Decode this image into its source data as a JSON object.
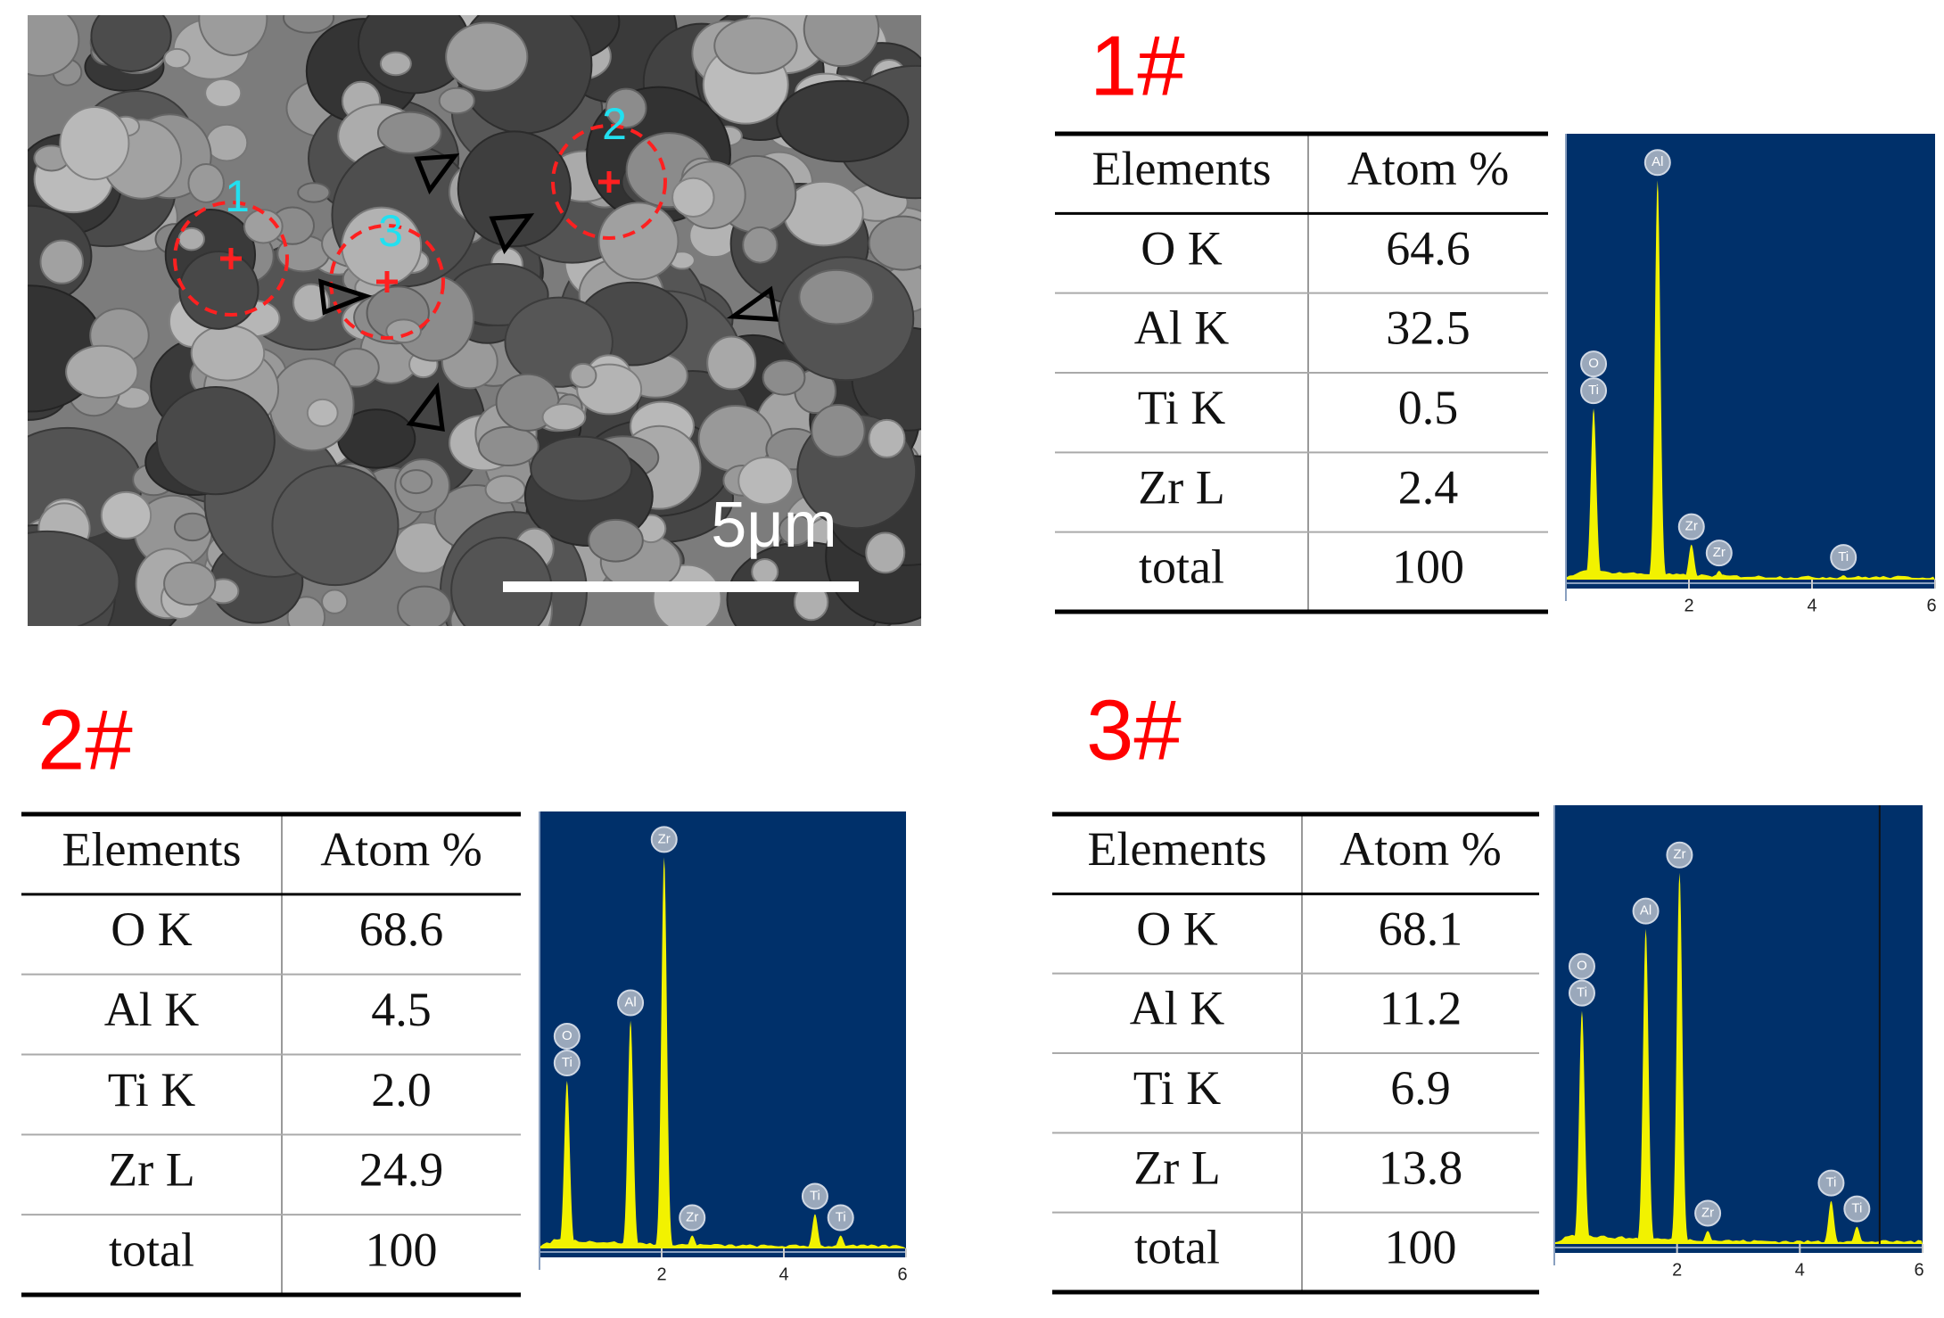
{
  "sem_image": {
    "spots": [
      "1",
      "2",
      "3"
    ],
    "scale_bar": "5μm"
  },
  "panels": [
    {
      "title": "1#",
      "table": {
        "header": [
          "Elements",
          "Atom %"
        ],
        "rows": [
          [
            "O K",
            "64.6"
          ],
          [
            "Al K",
            "32.5"
          ],
          [
            "Ti K",
            "0.5"
          ],
          [
            "Zr L",
            "2.4"
          ],
          [
            "total",
            "100"
          ]
        ]
      },
      "spectrum": {
        "xlim": [
          0,
          6
        ],
        "xticks": [
          2,
          4,
          6
        ],
        "ylim": [
          0,
          100
        ],
        "peaks": [
          {
            "energy": 0.45,
            "height": 39,
            "labels": [
              "O",
              "Ti"
            ]
          },
          {
            "energy": 1.49,
            "height": 91,
            "labels": [
              "Al"
            ]
          },
          {
            "energy": 2.04,
            "height": 8,
            "labels": [
              "Zr"
            ]
          },
          {
            "energy": 2.49,
            "height": 2,
            "labels": [
              "Zr"
            ]
          },
          {
            "energy": 4.51,
            "height": 1,
            "labels": [
              "Ti"
            ]
          }
        ]
      }
    },
    {
      "title": "2#",
      "table": {
        "header": [
          "Elements",
          "Atom %"
        ],
        "rows": [
          [
            "O K",
            "68.6"
          ],
          [
            "Al K",
            "4.5"
          ],
          [
            "Ti K",
            "2.0"
          ],
          [
            "Zr L",
            "24.9"
          ],
          [
            "total",
            "100"
          ]
        ]
      },
      "spectrum": {
        "xlim": [
          0,
          6
        ],
        "xticks": [
          2,
          4,
          6
        ],
        "ylim": [
          0,
          100
        ],
        "peaks": [
          {
            "energy": 0.45,
            "height": 39,
            "labels": [
              "O",
              "Ti"
            ]
          },
          {
            "energy": 1.49,
            "height": 53,
            "labels": [
              "Al"
            ]
          },
          {
            "energy": 2.04,
            "height": 91,
            "labels": [
              "Zr"
            ]
          },
          {
            "energy": 2.5,
            "height": 3,
            "labels": [
              "Zr"
            ]
          },
          {
            "energy": 4.51,
            "height": 8,
            "labels": [
              "Ti"
            ]
          },
          {
            "energy": 4.93,
            "height": 3,
            "labels": [
              "Ti"
            ]
          }
        ]
      }
    },
    {
      "title": "3#",
      "table": {
        "header": [
          "Elements",
          "Atom %"
        ],
        "rows": [
          [
            "O K",
            "68.1"
          ],
          [
            "Al K",
            "11.2"
          ],
          [
            "Ti K",
            "6.9"
          ],
          [
            "Zr L",
            "13.8"
          ],
          [
            "total",
            "100"
          ]
        ]
      },
      "spectrum": {
        "xlim": [
          0,
          6
        ],
        "xticks": [
          2,
          4,
          6
        ],
        "ylim": [
          0,
          100
        ],
        "peaks": [
          {
            "energy": 0.45,
            "height": 54,
            "labels": [
              "O",
              "Ti"
            ]
          },
          {
            "energy": 1.49,
            "height": 73,
            "labels": [
              "Al"
            ]
          },
          {
            "energy": 2.04,
            "height": 86,
            "labels": [
              "Zr"
            ]
          },
          {
            "energy": 2.5,
            "height": 3,
            "labels": [
              "Zr"
            ]
          },
          {
            "energy": 4.51,
            "height": 10,
            "labels": [
              "Ti"
            ]
          },
          {
            "energy": 4.93,
            "height": 4,
            "labels": [
              "Ti"
            ]
          }
        ]
      }
    }
  ]
}
